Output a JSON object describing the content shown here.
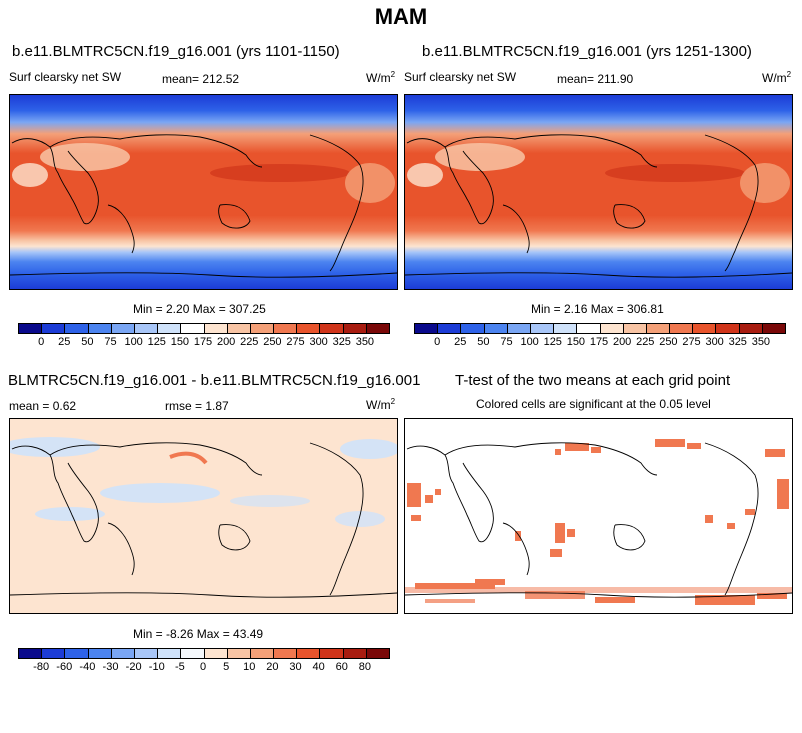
{
  "figure": {
    "title": "MAM"
  },
  "panel_top_left": {
    "title": "b.e11.BLMTRC5CN.f19_g16.001 (yrs 1101-1150)",
    "variable": "Surf clearsky net SW",
    "mean_label": "mean= 212.52",
    "units": "W/m",
    "units_exp": "2",
    "minmax": "Min =   2.20 Max = 307.25"
  },
  "panel_top_right": {
    "title": "b.e11.BLMTRC5CN.f19_g16.001 (yrs 1251-1300)",
    "variable": "Surf clearsky net SW",
    "mean_label": "mean= 211.90",
    "units": "W/m",
    "units_exp": "2",
    "minmax": "Min =   2.16 Max = 306.81"
  },
  "panel_bottom_left": {
    "title": "BLMTRC5CN.f19_g16.001 - b.e11.BLMTRC5CN.f19_g16.001",
    "mean_label": "mean =   0.62",
    "rmse_label": "rmse =   1.87",
    "units": "W/m",
    "units_exp": "2",
    "minmax": "Min =  -8.26 Max =  43.49"
  },
  "panel_bottom_right": {
    "title": "T-test of the two means at each grid point",
    "subtitle": "Colored cells are significant at the 0.05 level"
  },
  "colorbar_abs": {
    "labels": [
      "0",
      "25",
      "50",
      "75",
      "100",
      "125",
      "150",
      "175",
      "200",
      "225",
      "250",
      "275",
      "300",
      "325",
      "350"
    ],
    "colors": [
      "#0a0a8c",
      "#1c3cd6",
      "#2e62e8",
      "#4c84f0",
      "#7aa6f4",
      "#a8c6f8",
      "#cfe2fa",
      "#ffffff",
      "#fde4d0",
      "#f8c4a4",
      "#f4a078",
      "#f07850",
      "#e8542c",
      "#d0341a",
      "#a81c10",
      "#7a0808"
    ]
  },
  "colorbar_diff": {
    "labels": [
      "-80",
      "-60",
      "-40",
      "-30",
      "-20",
      "-10",
      "-5",
      "0",
      "5",
      "10",
      "20",
      "30",
      "40",
      "60",
      "80"
    ],
    "colors": [
      "#0a0a8c",
      "#1c3cd6",
      "#2e62e8",
      "#4c84f0",
      "#7aa6f4",
      "#a8c6f8",
      "#cfe2fa",
      "#f4f8fc",
      "#fde4d0",
      "#f8c4a4",
      "#f4a078",
      "#f07850",
      "#e8542c",
      "#d0341a",
      "#a81c10",
      "#7a0808"
    ]
  }
}
